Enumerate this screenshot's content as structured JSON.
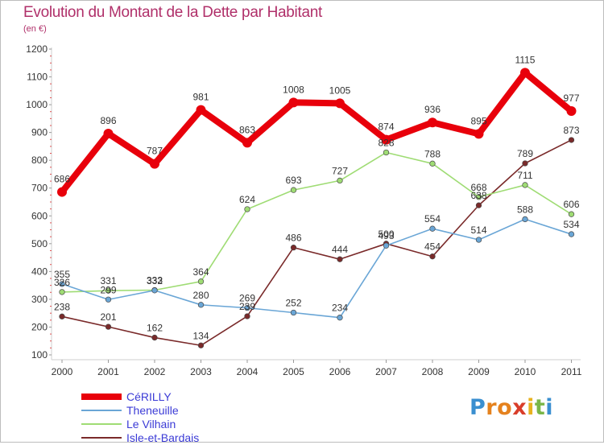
{
  "header": {
    "title": "Evolution du Montant de la Dette par Habitant",
    "unit": "(en €)"
  },
  "logo": {
    "letters": [
      "P",
      "r",
      "o",
      "x",
      "i",
      "t",
      "i"
    ],
    "colors": [
      "#3a8fd0",
      "#e5821e",
      "#e5821e",
      "#d93d2a",
      "#e8b21e",
      "#7ab648",
      "#3a8fd0"
    ]
  },
  "chart_data": {
    "type": "line",
    "title": "Evolution du Montant de la Dette par Habitant",
    "ylabel": "(en €)",
    "xlabel": "",
    "x": [
      "2000",
      "2001",
      "2002",
      "2003",
      "2004",
      "2005",
      "2006",
      "2007",
      "2008",
      "2009",
      "2010",
      "2011"
    ],
    "ylim": [
      100,
      1200
    ],
    "yticks": [
      100,
      200,
      300,
      400,
      500,
      600,
      700,
      800,
      900,
      1000,
      1100,
      1200
    ],
    "grid": false,
    "legend_position": "bottom-left",
    "series": [
      {
        "name": "CéRILLY",
        "color": "#e8000b",
        "labels": [
          "686",
          "896",
          "787",
          "981",
          "863",
          "1008",
          "1005",
          "874",
          "936",
          "895",
          "1115",
          "977"
        ],
        "values": [
          686,
          896,
          787,
          981,
          863,
          1008,
          1005,
          874,
          936,
          895,
          1115,
          977
        ]
      },
      {
        "name": "Theneuille",
        "color": "#6aa6d6",
        "labels": [
          "355",
          "299",
          "332",
          "280",
          "269",
          "252",
          "234",
          "493",
          "554",
          "514",
          "588",
          "534"
        ],
        "values": [
          355,
          299,
          332,
          280,
          269,
          252,
          234,
          493,
          554,
          514,
          588,
          534
        ]
      },
      {
        "name": "Le Vilhain",
        "color": "#9fdc74",
        "labels": [
          "326",
          "331",
          "333",
          "364",
          "624",
          "693",
          "727",
          "828",
          "788",
          "668",
          "711",
          "606"
        ],
        "values": [
          326,
          331,
          333,
          364,
          624,
          693,
          727,
          828,
          788,
          668,
          711,
          606
        ]
      },
      {
        "name": "Isle-et-Bardais",
        "color": "#7a2a2a",
        "labels": [
          "238",
          "201",
          "162",
          "134",
          "239",
          "486",
          "444",
          "500",
          "454",
          "638",
          "789",
          "873"
        ],
        "values": [
          238,
          201,
          162,
          134,
          239,
          486,
          444,
          500,
          454,
          638,
          789,
          873
        ]
      }
    ]
  }
}
